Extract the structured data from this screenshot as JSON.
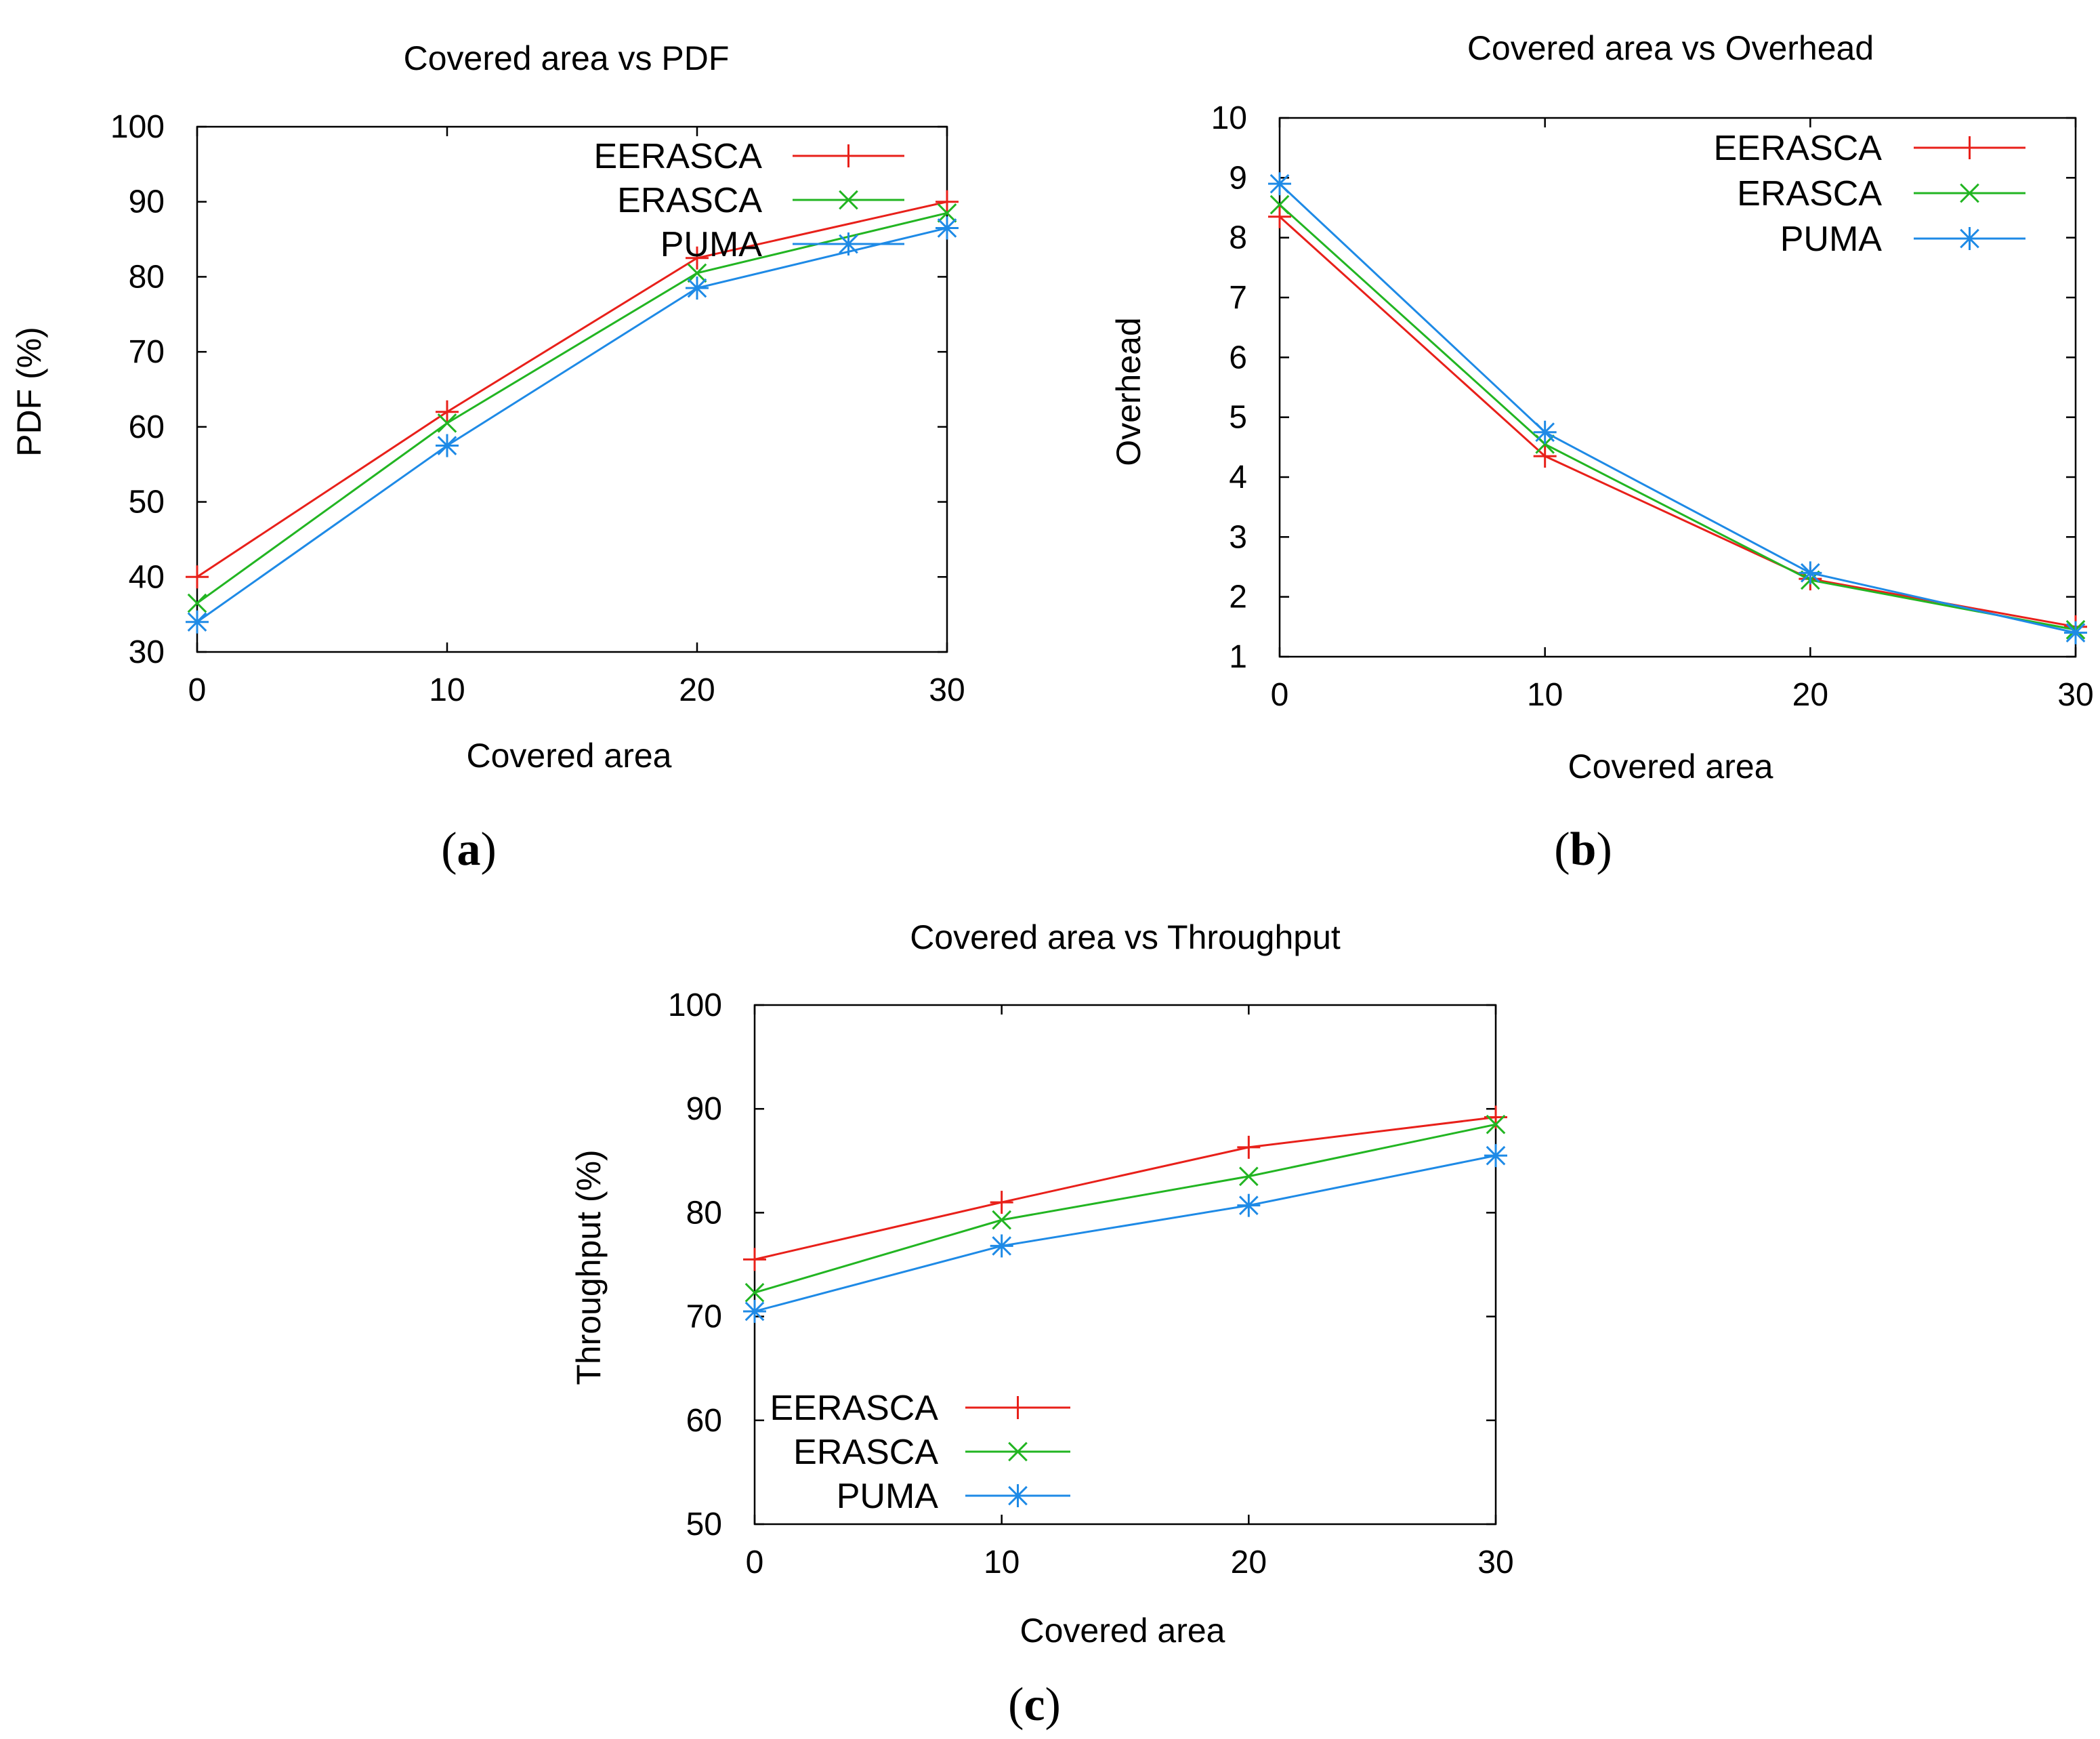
{
  "figure": {
    "panels": [
      {
        "caption": {
          "open": "(",
          "letter": "a",
          "close": ")"
        }
      },
      {
        "caption": {
          "open": "(",
          "letter": "b",
          "close": ")"
        }
      },
      {
        "caption": {
          "open": "(",
          "letter": "c",
          "close": ")"
        }
      }
    ]
  },
  "chart_data": [
    {
      "type": "line",
      "title": "Covered area vs PDF",
      "xlabel": "Covered area",
      "ylabel": "PDF (%)",
      "xlim": [
        0,
        30
      ],
      "ylim": [
        30,
        100
      ],
      "xticks": [
        0,
        10,
        20,
        30
      ],
      "yticks": [
        30,
        40,
        50,
        60,
        70,
        80,
        90,
        100
      ],
      "grid": false,
      "legend_position": "top-right",
      "x": [
        0,
        10,
        20,
        30
      ],
      "series": [
        {
          "name": "EERASCA",
          "values": [
            40,
            62,
            82.5,
            90
          ],
          "color": "#e8201a",
          "marker": "plus"
        },
        {
          "name": "ERASCA",
          "values": [
            36.5,
            60.5,
            80.5,
            88.5
          ],
          "color": "#22b522",
          "marker": "cross"
        },
        {
          "name": "PUMA",
          "values": [
            34,
            57.5,
            78.5,
            86.5
          ],
          "color": "#1e8ae6",
          "marker": "star"
        }
      ]
    },
    {
      "type": "line",
      "title": "Covered area vs Overhead",
      "xlabel": "Covered area",
      "ylabel": "Overhead",
      "xlim": [
        0,
        30
      ],
      "ylim": [
        1,
        10
      ],
      "xticks": [
        0,
        10,
        20,
        30
      ],
      "yticks": [
        1,
        2,
        3,
        4,
        5,
        6,
        7,
        8,
        9,
        10
      ],
      "grid": false,
      "legend_position": "top-right",
      "x": [
        0,
        10,
        20,
        30
      ],
      "series": [
        {
          "name": "EERASCA",
          "values": [
            8.35,
            4.35,
            2.3,
            1.5
          ],
          "color": "#e8201a",
          "marker": "plus"
        },
        {
          "name": "ERASCA",
          "values": [
            8.55,
            4.55,
            2.28,
            1.45
          ],
          "color": "#22b522",
          "marker": "cross"
        },
        {
          "name": "PUMA",
          "values": [
            8.9,
            4.75,
            2.4,
            1.4
          ],
          "color": "#1e8ae6",
          "marker": "star"
        }
      ]
    },
    {
      "type": "line",
      "title": "Covered area vs Throughput",
      "xlabel": "Covered area",
      "ylabel": "Throughput (%)",
      "xlim": [
        0,
        30
      ],
      "ylim": [
        50,
        100
      ],
      "xticks": [
        0,
        10,
        20,
        30
      ],
      "yticks": [
        50,
        60,
        70,
        80,
        90,
        100
      ],
      "grid": false,
      "legend_position": "bottom-left",
      "x": [
        0,
        10,
        20,
        30
      ],
      "series": [
        {
          "name": "EERASCA",
          "values": [
            75.5,
            81,
            86.3,
            89.2
          ],
          "color": "#e8201a",
          "marker": "plus"
        },
        {
          "name": "ERASCA",
          "values": [
            72.3,
            79.3,
            83.5,
            88.5
          ],
          "color": "#22b522",
          "marker": "cross"
        },
        {
          "name": "PUMA",
          "values": [
            70.5,
            76.8,
            80.7,
            85.5
          ],
          "color": "#1e8ae6",
          "marker": "star"
        }
      ]
    }
  ]
}
